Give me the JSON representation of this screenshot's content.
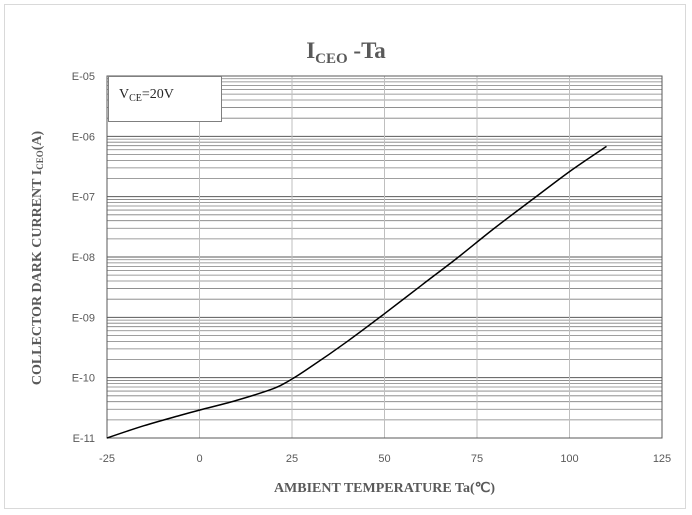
{
  "chart_data": {
    "type": "line",
    "title": "ICEO -Ta",
    "title_main": "I",
    "title_sub": "CEO",
    "title_tail": " -Ta",
    "xlabel": "AMBIENT TEMPERATURE Ta(℃)",
    "ylabel_main": "COLLECTOR DARK CURRENT  I",
    "ylabel_sub": "CEO",
    "ylabel_tail": "(A)",
    "annotation_main": "V",
    "annotation_sub": "CE",
    "annotation_tail": "=20V",
    "xlim": [
      -25,
      125
    ],
    "x_ticks": [
      -25,
      0,
      25,
      50,
      75,
      100,
      125
    ],
    "x_tick_labels": [
      "-25",
      "0",
      "25",
      "50",
      "75",
      "100",
      "125"
    ],
    "yscale": "log",
    "ylim": [
      1e-11,
      1e-05
    ],
    "y_ticks": [
      1e-11,
      1e-10,
      1e-09,
      1e-08,
      1e-07,
      1e-06,
      1e-05
    ],
    "y_tick_labels": [
      "E-11",
      "E-10",
      "E-09",
      "E-08",
      "E-07",
      "E-06",
      "E-05"
    ],
    "grid": true,
    "series": [
      {
        "color": "#000000",
        "x": [
          -25,
          -15,
          -5,
          0,
          10,
          20,
          25,
          30,
          40,
          50,
          60,
          70,
          80,
          90,
          100,
          110
        ],
        "y": [
          1e-11,
          1.6e-11,
          2.4e-11,
          2.9e-11,
          4.2e-11,
          6.6e-11,
          9.5e-11,
          1.5e-10,
          4e-10,
          1.15e-09,
          3.4e-09,
          1e-08,
          3.1e-08,
          9e-08,
          2.6e-07,
          6.8e-07
        ]
      }
    ]
  }
}
